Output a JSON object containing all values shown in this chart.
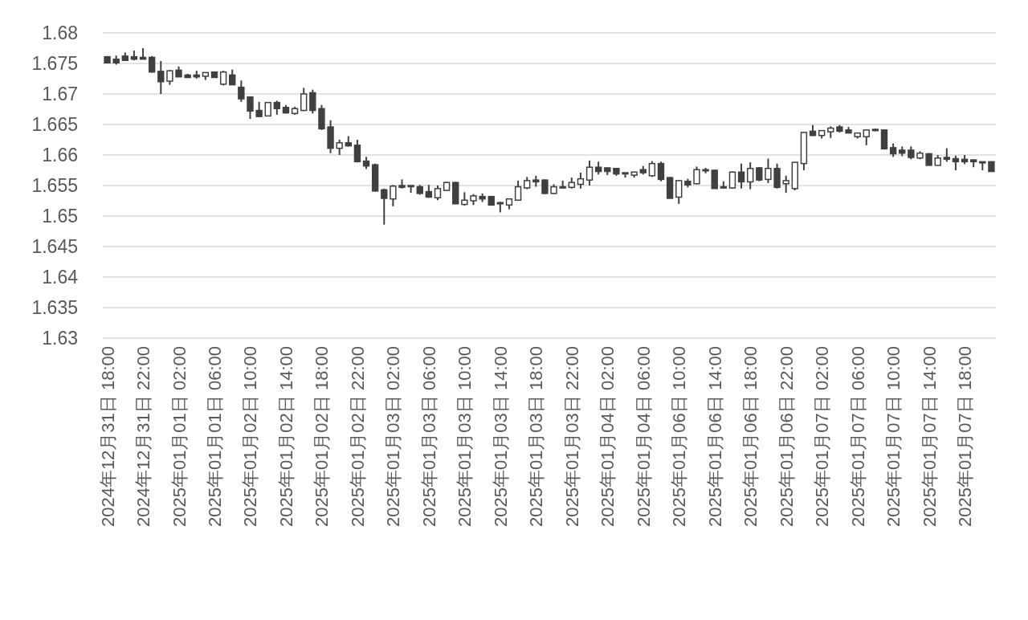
{
  "chart_data": {
    "type": "candlestick",
    "color": "#404040",
    "grid": "y",
    "ylim": [
      1.63,
      1.68
    ],
    "yticks": [
      1.63,
      1.635,
      1.64,
      1.645,
      1.65,
      1.655,
      1.66,
      1.665,
      1.67,
      1.675,
      1.68
    ],
    "categories": [
      "2024年12月31日 18:00",
      null,
      null,
      null,
      "2024年12月31日 22:00",
      null,
      null,
      null,
      "2025年01月01日 02:00",
      null,
      null,
      null,
      "2025年01月01日 06:00",
      null,
      null,
      null,
      "2025年01月02日 10:00",
      null,
      null,
      null,
      "2025年01月02日 14:00",
      null,
      null,
      null,
      "2025年01月02日 18:00",
      null,
      null,
      null,
      "2025年01月02日 22:00",
      null,
      null,
      null,
      "2025年01月03日 02:00",
      null,
      null,
      null,
      "2025年01月03日 06:00",
      null,
      null,
      null,
      "2025年01月03日 10:00",
      null,
      null,
      null,
      "2025年01月03日 14:00",
      null,
      null,
      null,
      "2025年01月03日 18:00",
      null,
      null,
      null,
      "2025年01月03日 22:00",
      null,
      null,
      null,
      "2025年01月04日 02:00",
      null,
      null,
      null,
      "2025年01月04日 06:00",
      null,
      null,
      null,
      "2025年01月06日 10:00",
      null,
      null,
      null,
      "2025年01月06日 14:00",
      null,
      null,
      null,
      "2025年01月06日 18:00",
      null,
      null,
      null,
      "2025年01月06日 22:00",
      null,
      null,
      null,
      "2025年01月07日 02:00",
      null,
      null,
      null,
      "2025年01月07日 06:00",
      null,
      null,
      null,
      "2025年01月07日 10:00",
      null,
      null,
      null,
      "2025年01月07日 14:00",
      null,
      null,
      null,
      "2025年01月07日 18:00",
      null,
      null,
      null
    ],
    "ohlc": [
      [
        1.6761,
        1.6762,
        1.675,
        1.6751
      ],
      [
        1.6757,
        1.6763,
        1.6748,
        1.6751
      ],
      [
        1.6762,
        1.6768,
        1.6754,
        1.6755
      ],
      [
        1.6761,
        1.6771,
        1.6755,
        1.6757
      ],
      [
        1.676,
        1.6775,
        1.6757,
        1.6757
      ],
      [
        1.676,
        1.6762,
        1.6735,
        1.6736
      ],
      [
        1.6737,
        1.6754,
        1.67,
        1.672
      ],
      [
        1.6721,
        1.6739,
        1.6715,
        1.6738
      ],
      [
        1.6739,
        1.6745,
        1.6728,
        1.6728
      ],
      [
        1.6731,
        1.6733,
        1.6727,
        1.6727
      ],
      [
        1.6731,
        1.6738,
        1.6725,
        1.6728
      ],
      [
        1.6729,
        1.6735,
        1.6723,
        1.6735
      ],
      [
        1.6736,
        1.6737,
        1.6727,
        1.6727
      ],
      [
        1.6716,
        1.6738,
        1.6714,
        1.6736
      ],
      [
        1.6731,
        1.674,
        1.6715,
        1.6715
      ],
      [
        1.6711,
        1.6722,
        1.6687,
        1.6692
      ],
      [
        1.6695,
        1.6695,
        1.6659,
        1.6672
      ],
      [
        1.6673,
        1.6687,
        1.6663,
        1.6663
      ],
      [
        1.6664,
        1.6686,
        1.6664,
        1.6686
      ],
      [
        1.6686,
        1.6689,
        1.6666,
        1.6676
      ],
      [
        1.6678,
        1.6682,
        1.6668,
        1.6669
      ],
      [
        1.6668,
        1.6679,
        1.6666,
        1.6676
      ],
      [
        1.6673,
        1.671,
        1.6672,
        1.67
      ],
      [
        1.6702,
        1.6707,
        1.6668,
        1.6673
      ],
      [
        1.6676,
        1.6682,
        1.6641,
        1.6643
      ],
      [
        1.6646,
        1.6657,
        1.6603,
        1.6611
      ],
      [
        1.6611,
        1.6625,
        1.66,
        1.662
      ],
      [
        1.662,
        1.6631,
        1.6614,
        1.6615
      ],
      [
        1.6616,
        1.6625,
        1.6588,
        1.6589
      ],
      [
        1.659,
        1.6597,
        1.6577,
        1.6582
      ],
      [
        1.6584,
        1.6586,
        1.654,
        1.6541
      ],
      [
        1.6543,
        1.6545,
        1.6486,
        1.6529
      ],
      [
        1.6528,
        1.6551,
        1.6516,
        1.6549
      ],
      [
        1.655,
        1.656,
        1.6545,
        1.6547
      ],
      [
        1.655,
        1.655,
        1.6538,
        1.6548
      ],
      [
        1.6548,
        1.6551,
        1.6535,
        1.6537
      ],
      [
        1.654,
        1.6551,
        1.653,
        1.6531
      ],
      [
        1.653,
        1.655,
        1.6526,
        1.6545
      ],
      [
        1.6542,
        1.6556,
        1.6542,
        1.6555
      ],
      [
        1.6555,
        1.6556,
        1.652,
        1.652
      ],
      [
        1.6519,
        1.6539,
        1.6517,
        1.6526
      ],
      [
        1.6525,
        1.6536,
        1.6518,
        1.6533
      ],
      [
        1.6532,
        1.6537,
        1.6523,
        1.6528
      ],
      [
        1.6532,
        1.6533,
        1.6517,
        1.6518
      ],
      [
        1.6522,
        1.6523,
        1.6506,
        1.6521
      ],
      [
        1.6518,
        1.6529,
        1.6511,
        1.6528
      ],
      [
        1.6526,
        1.6558,
        1.6525,
        1.6548
      ],
      [
        1.6546,
        1.6564,
        1.6544,
        1.6558
      ],
      [
        1.6559,
        1.6566,
        1.6548,
        1.6556
      ],
      [
        1.6559,
        1.656,
        1.6536,
        1.6537
      ],
      [
        1.6537,
        1.6552,
        1.6536,
        1.6548
      ],
      [
        1.6548,
        1.6558,
        1.6545,
        1.6546
      ],
      [
        1.6547,
        1.6563,
        1.6545,
        1.6555
      ],
      [
        1.6552,
        1.6571,
        1.6545,
        1.6561
      ],
      [
        1.6559,
        1.6591,
        1.655,
        1.658
      ],
      [
        1.658,
        1.6589,
        1.6568,
        1.6573
      ],
      [
        1.6579,
        1.6579,
        1.6567,
        1.6573
      ],
      [
        1.6578,
        1.6578,
        1.6566,
        1.6569
      ],
      [
        1.6571,
        1.6571,
        1.6563,
        1.6569
      ],
      [
        1.6567,
        1.6572,
        1.6563,
        1.6572
      ],
      [
        1.6576,
        1.6582,
        1.6568,
        1.6571
      ],
      [
        1.6566,
        1.659,
        1.6564,
        1.6586
      ],
      [
        1.6586,
        1.6589,
        1.6557,
        1.656
      ],
      [
        1.6563,
        1.6564,
        1.6529,
        1.6529
      ],
      [
        1.6531,
        1.6559,
        1.652,
        1.6558
      ],
      [
        1.6557,
        1.6561,
        1.6547,
        1.6551
      ],
      [
        1.6553,
        1.6581,
        1.6552,
        1.6576
      ],
      [
        1.6576,
        1.6579,
        1.657,
        1.6574
      ],
      [
        1.6575,
        1.6576,
        1.6545,
        1.6545
      ],
      [
        1.6548,
        1.6557,
        1.6545,
        1.6546
      ],
      [
        1.6546,
        1.6573,
        1.6545,
        1.6572
      ],
      [
        1.6572,
        1.6586,
        1.6545,
        1.6556
      ],
      [
        1.6556,
        1.6588,
        1.6544,
        1.6578
      ],
      [
        1.6579,
        1.658,
        1.6557,
        1.6559
      ],
      [
        1.656,
        1.6594,
        1.6554,
        1.6578
      ],
      [
        1.6578,
        1.6586,
        1.6545,
        1.6547
      ],
      [
        1.6553,
        1.6566,
        1.6538,
        1.6558
      ],
      [
        1.6545,
        1.6588,
        1.6542,
        1.6588
      ],
      [
        1.6586,
        1.6638,
        1.6575,
        1.6637
      ],
      [
        1.6639,
        1.6649,
        1.6631,
        1.6632
      ],
      [
        1.6632,
        1.664,
        1.6627,
        1.664
      ],
      [
        1.6638,
        1.6647,
        1.6628,
        1.6644
      ],
      [
        1.6646,
        1.6649,
        1.6637,
        1.6639
      ],
      [
        1.6641,
        1.6646,
        1.6636,
        1.6636
      ],
      [
        1.663,
        1.6636,
        1.6627,
        1.6636
      ],
      [
        1.663,
        1.6641,
        1.6616,
        1.6641
      ],
      [
        1.6642,
        1.6643,
        1.6639,
        1.664
      ],
      [
        1.6641,
        1.6641,
        1.661,
        1.661
      ],
      [
        1.6612,
        1.6619,
        1.6597,
        1.6602
      ],
      [
        1.6608,
        1.6614,
        1.6598,
        1.6603
      ],
      [
        1.6608,
        1.6614,
        1.6593,
        1.6596
      ],
      [
        1.6595,
        1.6606,
        1.6593,
        1.6603
      ],
      [
        1.6602,
        1.6603,
        1.6583,
        1.6583
      ],
      [
        1.6583,
        1.66,
        1.6583,
        1.6595
      ],
      [
        1.6596,
        1.6611,
        1.6589,
        1.6593
      ],
      [
        1.6594,
        1.6599,
        1.6575,
        1.6589
      ],
      [
        1.6593,
        1.66,
        1.6585,
        1.6589
      ],
      [
        1.6592,
        1.6593,
        1.658,
        1.6589
      ],
      [
        1.6589,
        1.6589,
        1.6575,
        1.6587
      ],
      [
        1.6589,
        1.6589,
        1.6573,
        1.6573
      ]
    ]
  }
}
